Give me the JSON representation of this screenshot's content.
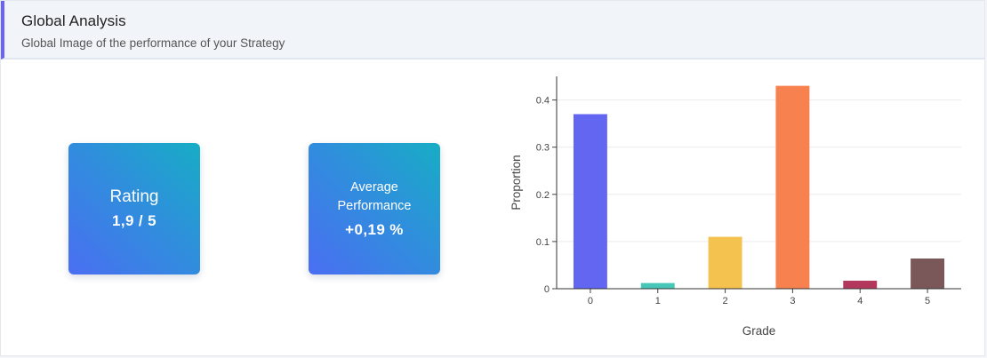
{
  "header": {
    "title": "Global Analysis",
    "subtitle": "Global Image of the performance of your Strategy"
  },
  "cards": {
    "rating": {
      "label": "Rating",
      "value": "1,9 / 5"
    },
    "performance": {
      "label": "Average Performance",
      "value": "+0,19 %"
    }
  },
  "chart_data": {
    "type": "bar",
    "categories": [
      "0",
      "1",
      "2",
      "3",
      "4",
      "5"
    ],
    "values": [
      0.37,
      0.012,
      0.11,
      0.43,
      0.017,
      0.064
    ],
    "colors": [
      "#6366f1",
      "#46c7b8",
      "#f3c24f",
      "#f7814f",
      "#b2385e",
      "#7a5759"
    ],
    "title": "",
    "xlabel": "Grade",
    "ylabel": "Proportion",
    "ylim": [
      0,
      0.45
    ],
    "yticks": [
      0,
      0.1,
      0.2,
      0.3,
      0.4
    ],
    "ytick_labels": [
      "0",
      "0.1",
      "0.2",
      "0.3",
      "0.4"
    ],
    "grid": true
  }
}
